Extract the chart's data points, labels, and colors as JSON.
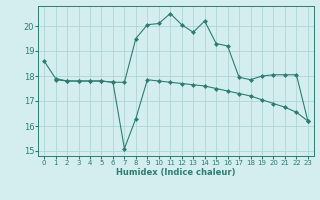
{
  "line1_x": [
    0,
    1,
    2,
    3,
    4,
    5,
    6,
    7,
    8,
    9,
    10,
    11,
    12,
    13,
    14,
    15,
    16,
    17,
    18,
    19,
    20,
    21,
    22,
    23
  ],
  "line1_y": [
    18.6,
    17.9,
    17.8,
    17.8,
    17.8,
    17.8,
    17.75,
    17.75,
    19.5,
    20.05,
    20.1,
    20.5,
    20.05,
    19.75,
    20.2,
    19.3,
    19.2,
    17.95,
    17.85,
    18.0,
    18.05,
    18.05,
    18.05,
    16.2
  ],
  "line2_x": [
    1,
    2,
    3,
    4,
    5,
    6,
    7,
    8,
    9,
    10,
    11,
    12,
    13,
    14,
    15,
    16,
    17,
    18,
    19,
    20,
    21,
    22,
    23
  ],
  "line2_y": [
    17.85,
    17.8,
    17.8,
    17.8,
    17.8,
    17.75,
    15.1,
    16.3,
    17.85,
    17.8,
    17.75,
    17.7,
    17.65,
    17.6,
    17.5,
    17.4,
    17.3,
    17.2,
    17.05,
    16.9,
    16.75,
    16.55,
    16.2
  ],
  "color": "#2d7d72",
  "bg_color": "#d4eef0",
  "grid_color": "#b0d5d8",
  "xlabel": "Humidex (Indice chaleur)",
  "xlim": [
    -0.5,
    23.5
  ],
  "ylim": [
    14.8,
    20.8
  ],
  "yticks": [
    15,
    16,
    17,
    18,
    19,
    20
  ],
  "xticks": [
    0,
    1,
    2,
    3,
    4,
    5,
    6,
    7,
    8,
    9,
    10,
    11,
    12,
    13,
    14,
    15,
    16,
    17,
    18,
    19,
    20,
    21,
    22,
    23
  ]
}
